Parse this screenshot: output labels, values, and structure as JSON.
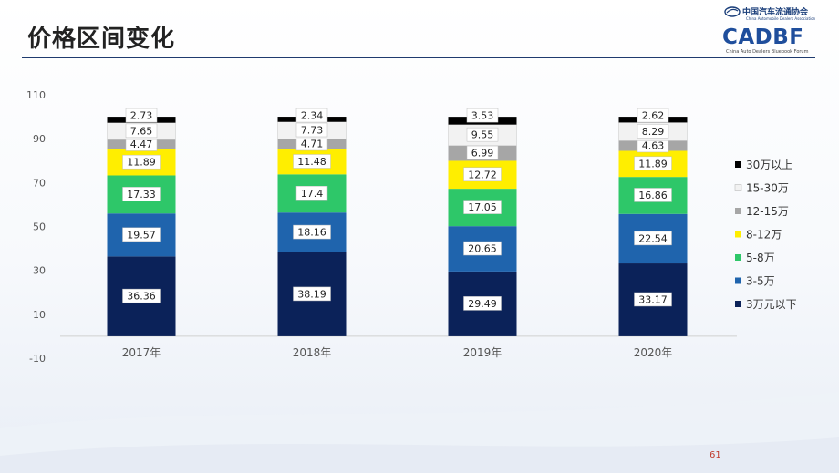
{
  "slide": {
    "title": "价格区间变化",
    "page_number": "61"
  },
  "logo": {
    "association_cn": "中国汽车流通协会",
    "association_en": "China Automobile Dealers Association",
    "brand": "CADBF",
    "brand_en": "China Auto Dealers Bluebook Forum"
  },
  "chart_data": {
    "type": "bar",
    "stacked": true,
    "categories": [
      "2017年",
      "2018年",
      "2019年",
      "2020年"
    ],
    "y_ticks": [
      110,
      90,
      70,
      50,
      30,
      10,
      -10
    ],
    "ylim": [
      -10,
      110
    ],
    "grid": false,
    "legend_position": "right",
    "series": [
      {
        "name": "3万元以下",
        "color": "#0b2259",
        "values": [
          36.36,
          38.19,
          29.49,
          33.17
        ]
      },
      {
        "name": "3-5万",
        "color": "#1f64ad",
        "values": [
          19.57,
          18.16,
          20.65,
          22.54
        ]
      },
      {
        "name": "5-8万",
        "color": "#2ec769",
        "values": [
          17.33,
          17.4,
          17.05,
          16.86
        ]
      },
      {
        "name": "8-12万",
        "color": "#ffee00",
        "values": [
          11.89,
          11.48,
          12.72,
          11.89
        ]
      },
      {
        "name": "12-15万",
        "color": "#a6a6a6",
        "values": [
          4.47,
          4.71,
          6.99,
          4.63
        ]
      },
      {
        "name": "15-30万",
        "color": "#f2f2f2",
        "values": [
          7.65,
          7.73,
          9.55,
          8.29
        ]
      },
      {
        "name": "30万以上",
        "color": "#000000",
        "values": [
          2.73,
          2.34,
          3.53,
          2.62
        ]
      }
    ],
    "data_labels": [
      [
        "36.36",
        "38.19",
        "29.49",
        "33.17"
      ],
      [
        "19.57",
        "18.16",
        "20.65",
        "22.54"
      ],
      [
        "17.33",
        "17.4",
        "17.05",
        "16.86"
      ],
      [
        "11.89",
        "11.48",
        "12.72",
        "11.89"
      ],
      [
        "4.47",
        "4.71",
        "6.99",
        "4.63"
      ],
      [
        "7.65",
        "7.73",
        "9.55",
        "8.29"
      ],
      [
        "2.73",
        "2.34",
        "3.53",
        "2.62"
      ]
    ]
  }
}
